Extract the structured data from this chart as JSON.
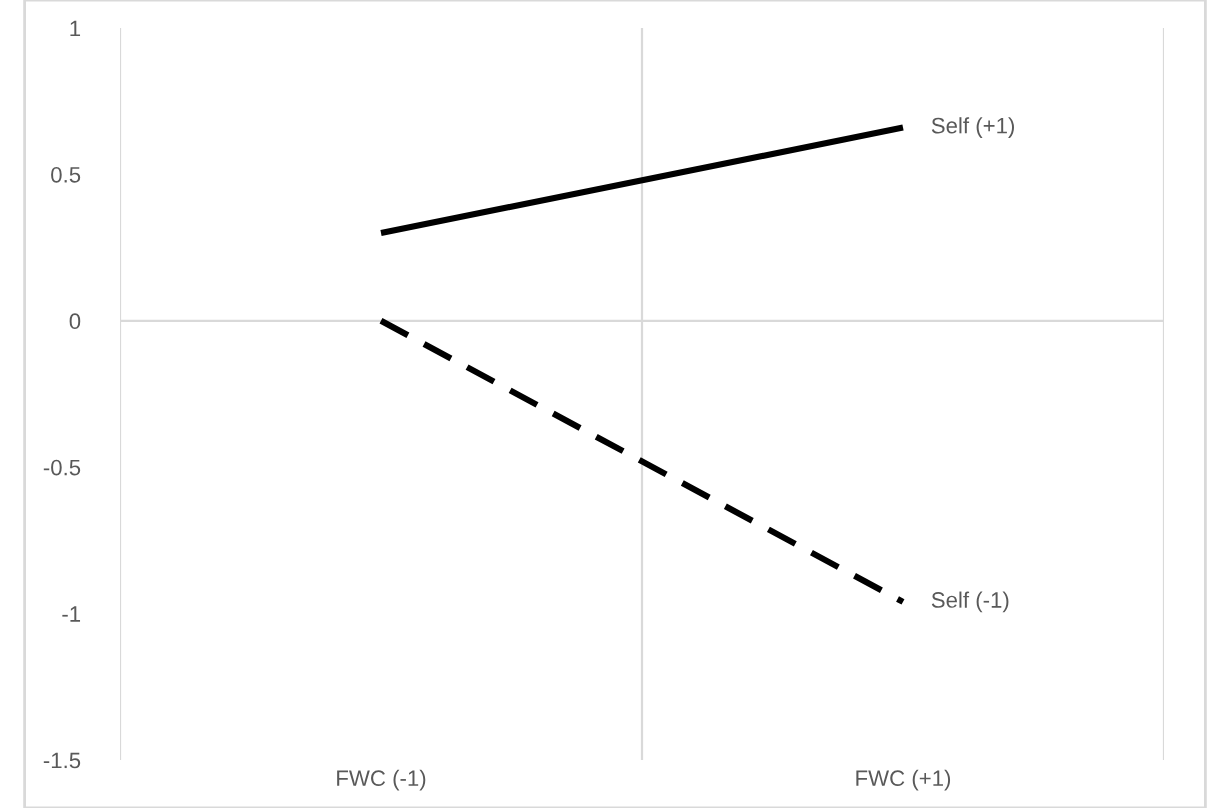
{
  "chart_data": {
    "type": "line",
    "categories": [
      "FWC (-1)",
      "FWC (+1)"
    ],
    "series": [
      {
        "name": "Self (+1)",
        "color": "#000000",
        "values": [
          0.3,
          0.66
        ],
        "line_style": "solid"
      },
      {
        "name": "Self (-1)",
        "color": "#000000",
        "values": [
          0.0,
          -0.96
        ],
        "line_style": "dashed"
      }
    ],
    "ylim": [
      -1.5,
      1
    ],
    "yticks": [
      -1.5,
      -1,
      -0.5,
      0,
      0.5,
      1
    ],
    "grid": "x",
    "legend": false,
    "marker": "none",
    "ref_lines": [
      {
        "axis": "y",
        "value": 0,
        "color": "#d9d9d9"
      }
    ]
  }
}
